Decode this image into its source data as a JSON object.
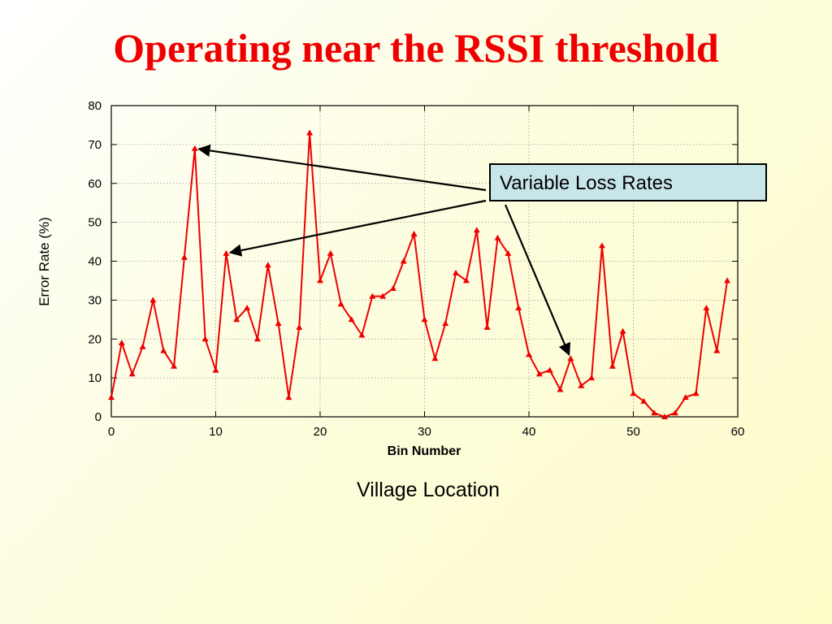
{
  "slide": {
    "title": "Operating near the RSSI threshold",
    "callout": "Variable Loss Rates",
    "caption": "Village Location"
  },
  "colors": {
    "series": "#ee0000",
    "title": "#ee0000",
    "callout_fill": "#c8e6ea"
  },
  "chart_data": {
    "type": "line",
    "xlabel": "Bin Number",
    "ylabel": "Error Rate (%)",
    "xlim": [
      0,
      60
    ],
    "ylim": [
      0,
      80
    ],
    "xticks": [
      0,
      10,
      20,
      30,
      40,
      50,
      60
    ],
    "yticks": [
      0,
      10,
      20,
      30,
      40,
      50,
      60,
      70,
      80
    ],
    "grid": true,
    "marker": "triangle",
    "series": [
      {
        "x": [
          0,
          1,
          2,
          3,
          4,
          5,
          6,
          7,
          8,
          9,
          10,
          11,
          12,
          13,
          14,
          15,
          16,
          17,
          18,
          19,
          20,
          21,
          22,
          23,
          24,
          25,
          26,
          27,
          28,
          29,
          30,
          31,
          32,
          33,
          34,
          35,
          36,
          37,
          38,
          39,
          40,
          41,
          42,
          43,
          44,
          45,
          46,
          47,
          48,
          49,
          50,
          51,
          52,
          53,
          54,
          55,
          56,
          57,
          58,
          59
        ],
        "values": [
          5,
          19,
          11,
          18,
          30,
          17,
          13,
          41,
          69,
          20,
          12,
          42,
          25,
          28,
          20,
          39,
          24,
          5,
          23,
          73,
          35,
          42,
          29,
          25,
          21,
          31,
          31,
          33,
          40,
          47,
          25,
          15,
          24,
          37,
          35,
          48,
          23,
          46,
          42,
          28,
          16,
          11,
          12,
          7,
          15,
          8,
          10,
          44,
          13,
          22,
          6,
          4,
          1,
          0,
          1,
          5,
          6,
          28,
          17,
          35
        ]
      }
    ],
    "annotations": [
      {
        "text": "Variable Loss Rates",
        "points_to_x": [
          8,
          11,
          44
        ]
      }
    ]
  }
}
